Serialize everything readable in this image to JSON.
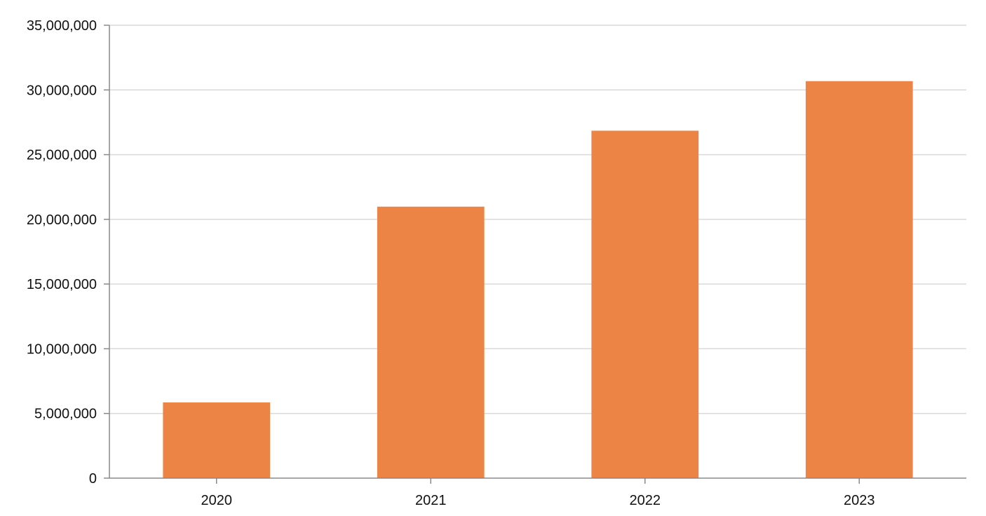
{
  "chart_data": {
    "type": "bar",
    "title": "",
    "categories": [
      "2020",
      "2021",
      "2022",
      "2023"
    ],
    "series": [
      {
        "values": [
          5850000,
          20980000,
          26850000,
          30680000
        ]
      }
    ],
    "xlabel": "",
    "ylabel": "",
    "ylim": [
      0,
      35000000
    ],
    "y_ticks": [
      0,
      5000000,
      10000000,
      15000000,
      20000000,
      25000000,
      30000000,
      35000000
    ],
    "y_tick_labels": [
      "0",
      "5,000,000",
      "10,000,000",
      "15,000,000",
      "20,000,000",
      "25,000,000",
      "30,000,000",
      "35,000,000"
    ],
    "grid": true,
    "legend": "none",
    "colors": {
      "bar": "#eb8444",
      "grid": "#d9d9d9",
      "axis": "#8a8a8a",
      "text": "#111111"
    }
  }
}
